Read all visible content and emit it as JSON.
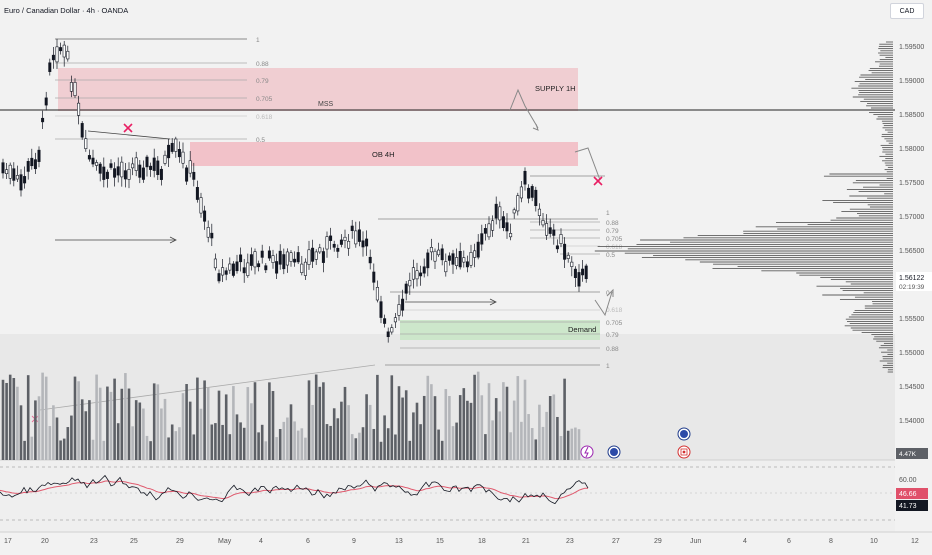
{
  "header": {
    "title": "Euro / Canadian Dollar · 4h · OANDA",
    "currency_button": "CAD"
  },
  "price_axis": {
    "ticks": [
      "1.59500",
      "1.59000",
      "1.58500",
      "1.58000",
      "1.57500",
      "1.57000",
      "1.56500",
      "1.55500",
      "1.55000",
      "1.54500",
      "1.54000"
    ],
    "current_price": "1.56122",
    "countdown": "02:19:39",
    "volume_badge": "4.47K"
  },
  "rsi_axis": {
    "level": "60.00",
    "rsi_value": "46.66",
    "rsi_ma_value": "41.73"
  },
  "time_axis": {
    "labels": [
      "17",
      "20",
      "23",
      "25",
      "29",
      "May",
      "4",
      "6",
      "9",
      "13",
      "15",
      "18",
      "21",
      "23",
      "27",
      "29",
      "Jun",
      "4",
      "6",
      "8",
      "10",
      "12"
    ]
  },
  "zones": {
    "supply": "SUPPLY 1H",
    "ob": "OB 4H",
    "demand": "Demand",
    "mss": "MSS"
  },
  "fib_top": [
    "1",
    "0.88",
    "0.79",
    "0.705",
    "0.618",
    "0.5"
  ],
  "fib_right": [
    "1",
    "0.88",
    "0.79",
    "0.705",
    "0.618",
    "0.5"
  ],
  "fib_demand": [
    "0",
    "0.618",
    "0.705",
    "0.79",
    "0.88",
    "1"
  ],
  "colors": {
    "background": "#f2f2f2",
    "supply_zone": "#f0c8cc",
    "ob_zone": "#f2bdc4",
    "demand_zone": "#c9e5c7",
    "candle": "#131722",
    "volume_dark": "#5d6066",
    "volume_light": "#b4b6ba",
    "rsi_line": "#131722",
    "rsi_ma": "#e05a6e",
    "cross": "#e91e63",
    "current_price_bg": "#ffffff",
    "rsi_badge": "#e0506a",
    "ma_badge": "#131722"
  },
  "events": {
    "flash_icon": "lightning-icon",
    "eu_flag": "eu-flag-icon",
    "ca_flag": "canada-flag-icon"
  }
}
